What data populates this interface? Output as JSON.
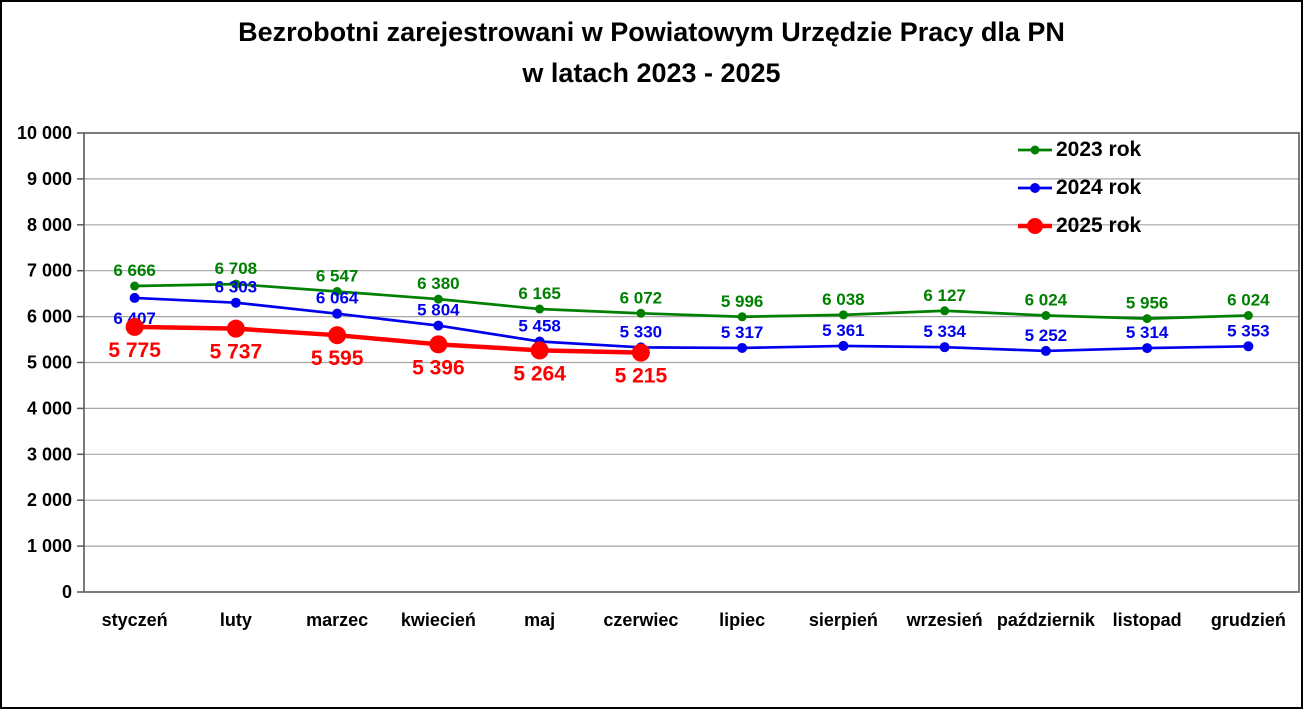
{
  "title": {
    "line1": "Bezrobotni zarejestrowani w Powiatowym Urzędzie Pracy dla PN",
    "line2": "w latach 2023 - 2025"
  },
  "colors": {
    "series_2023": "#008000",
    "series_2024": "#0000ee",
    "series_2025": "#ff0000",
    "grid": "#a6a6a6",
    "plot_border": "#595959",
    "text": "#000000",
    "background": "#ffffff"
  },
  "chart_data": {
    "type": "line",
    "title": "Bezrobotni zarejestrowani w Powiatowym Urzędzie Pracy dla PN w latach 2023 - 2025",
    "categories": [
      "styczeń",
      "luty",
      "marzec",
      "kwiecień",
      "maj",
      "czerwiec",
      "lipiec",
      "sierpień",
      "wrzesień",
      "październik",
      "listopad",
      "grudzień"
    ],
    "series": [
      {
        "name": "2023 rok",
        "color": "#008000",
        "values": [
          6666,
          6708,
          6547,
          6380,
          6165,
          6072,
          5996,
          6038,
          6127,
          6024,
          5956,
          6024
        ],
        "marker_r": 4.5,
        "line_w": 2.7,
        "label_pos": "above",
        "label_size": 17,
        "label_pos_overrides": {}
      },
      {
        "name": "2024 rok",
        "color": "#0000ee",
        "values": [
          6407,
          6303,
          6064,
          5804,
          5458,
          5330,
          5317,
          5361,
          5334,
          5252,
          5314,
          5353
        ],
        "marker_r": 5,
        "line_w": 2.7,
        "label_pos": "above",
        "label_size": 17,
        "label_pos_overrides": {
          "0": "below"
        }
      },
      {
        "name": "2025 rok",
        "color": "#ff0000",
        "values": [
          5775,
          5737,
          5595,
          5396,
          5264,
          5215,
          null,
          null,
          null,
          null,
          null,
          null
        ],
        "marker_r": 9,
        "line_w": 4.5,
        "label_pos": "below",
        "label_size": 21,
        "label_pos_overrides": {}
      }
    ],
    "xlabel": "",
    "ylabel": "",
    "ylim": [
      0,
      10000
    ],
    "ytick_step": 1000,
    "grid": true,
    "legend_position": "top-right"
  }
}
